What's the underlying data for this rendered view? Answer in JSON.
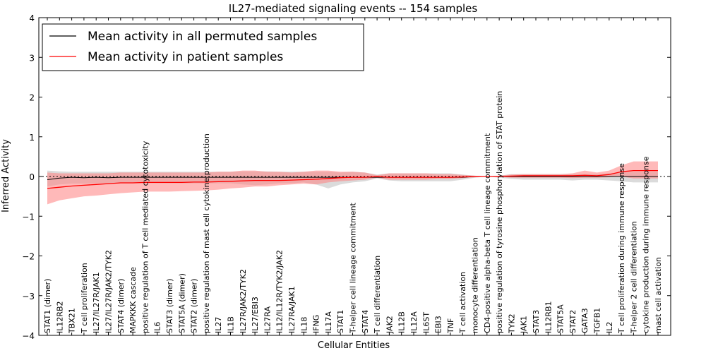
{
  "chart_data": {
    "type": "line",
    "title": "IL27-mediated signaling events -- 154 samples",
    "xlabel": "Cellular Entities",
    "ylabel": "Inferred Activity",
    "ylim": [
      -4,
      4
    ],
    "yticks": [
      "−4",
      "−3",
      "−2",
      "−1",
      "0",
      "1",
      "2",
      "3",
      "4"
    ],
    "ytick_values": [
      -4,
      -3,
      -2,
      -1,
      0,
      1,
      2,
      3,
      4
    ],
    "legend_position": "top-left",
    "grid": false,
    "categories": [
      "STAT1 (dimer)",
      "IL12RB2",
      "TBX21",
      "T cell proliferation",
      "IL27/IL27R/JAK1",
      "IL27/IL27R/JAK2/TYK2",
      "STAT4 (dimer)",
      "MAPKKK cascade",
      "positive regulation of T cell mediated cytotoxicity",
      "IL6",
      "STAT3 (dimer)",
      "STAT5A (dimer)",
      "STAT2 (dimer)",
      "positive regulation of mast cell cytokine production",
      "IL27",
      "IL1B",
      "IL27R/JAK2/TYK2",
      "IL27/EBI3",
      "IL27RA",
      "IL12/IL12R/TYK2/JAK2",
      "IL27RA/JAK1",
      "IL18",
      "IFNG",
      "IL17A",
      "STAT1",
      "T-helper cell lineage commitment",
      "STAT4",
      "T cell differentiation",
      "JAK2",
      "IL12B",
      "IL12A",
      "IL6ST",
      "EBI3",
      "TNF",
      "T cell activation",
      "monocyte differentiation",
      "CD4-positive alpha-beta T cell lineage commitment",
      "positive regulation of tyrosine phosphorylation of STAT protein",
      "TYK2",
      "JAK1",
      "STAT3",
      "IL12RB1",
      "STAT5A",
      "STAT2",
      "GATA3",
      "TGFB1",
      "IL2",
      "T cell proliferation during immune response",
      "T-helper 2 cell differentiation",
      "cytokine production during immune response",
      "mast cell activation"
    ],
    "series": [
      {
        "name": "Mean activity in all permuted samples",
        "color": "#000000",
        "band_color": "#b0b0b0",
        "values": [
          -0.08,
          -0.04,
          -0.02,
          -0.03,
          -0.02,
          -0.03,
          -0.02,
          -0.02,
          -0.02,
          -0.02,
          -0.02,
          -0.02,
          -0.02,
          -0.02,
          -0.02,
          -0.02,
          -0.02,
          -0.02,
          -0.02,
          -0.02,
          -0.02,
          -0.02,
          -0.02,
          -0.02,
          -0.02,
          -0.02,
          -0.02,
          -0.02,
          -0.02,
          -0.02,
          -0.02,
          -0.02,
          -0.02,
          -0.02,
          -0.02,
          0.0,
          0.0,
          0.0,
          0.0,
          0.0,
          0.0,
          0.0,
          0.0,
          0.0,
          0.0,
          0.0,
          0.0,
          0.0,
          0.0,
          0.0,
          0.0
        ],
        "lower": [
          -0.25,
          -0.2,
          -0.18,
          -0.18,
          -0.17,
          -0.17,
          -0.17,
          -0.17,
          -0.17,
          -0.17,
          -0.17,
          -0.17,
          -0.17,
          -0.17,
          -0.17,
          -0.17,
          -0.2,
          -0.22,
          -0.2,
          -0.17,
          -0.17,
          -0.15,
          -0.2,
          -0.3,
          -0.2,
          -0.15,
          -0.12,
          -0.05,
          -0.1,
          -0.12,
          -0.12,
          -0.12,
          -0.12,
          -0.12,
          -0.08,
          -0.03,
          0.0,
          -0.03,
          -0.06,
          -0.08,
          -0.08,
          -0.08,
          -0.08,
          -0.1,
          -0.08,
          -0.08,
          -0.1,
          -0.12,
          -0.15,
          -0.15,
          -0.15
        ],
        "upper": [
          0.15,
          0.13,
          0.12,
          0.12,
          0.12,
          0.12,
          0.12,
          0.12,
          0.12,
          0.12,
          0.12,
          0.12,
          0.12,
          0.12,
          0.12,
          0.12,
          0.13,
          0.13,
          0.13,
          0.12,
          0.12,
          0.12,
          0.12,
          0.12,
          0.1,
          0.12,
          0.1,
          0.05,
          0.08,
          0.08,
          0.08,
          0.08,
          0.08,
          0.08,
          0.05,
          0.02,
          0.0,
          0.02,
          0.06,
          0.06,
          0.06,
          0.06,
          0.06,
          0.06,
          0.06,
          0.06,
          0.08,
          0.1,
          0.12,
          0.12,
          0.12
        ]
      },
      {
        "name": "Mean activity in patient samples",
        "color": "#ff0000",
        "band_color": "#ff8080",
        "values": [
          -0.3,
          -0.27,
          -0.24,
          -0.22,
          -0.2,
          -0.18,
          -0.16,
          -0.16,
          -0.15,
          -0.15,
          -0.15,
          -0.15,
          -0.14,
          -0.14,
          -0.13,
          -0.12,
          -0.11,
          -0.1,
          -0.1,
          -0.1,
          -0.09,
          -0.08,
          -0.07,
          -0.05,
          -0.03,
          -0.02,
          -0.02,
          0.0,
          -0.02,
          -0.02,
          -0.02,
          -0.02,
          -0.02,
          -0.02,
          -0.01,
          0.0,
          0.0,
          0.0,
          0.01,
          0.02,
          0.02,
          0.02,
          0.02,
          0.02,
          0.03,
          0.02,
          0.05,
          0.12,
          0.15,
          0.15,
          0.15
        ],
        "lower": [
          -0.7,
          -0.6,
          -0.55,
          -0.5,
          -0.48,
          -0.45,
          -0.42,
          -0.4,
          -0.38,
          -0.38,
          -0.38,
          -0.37,
          -0.36,
          -0.35,
          -0.33,
          -0.3,
          -0.28,
          -0.25,
          -0.25,
          -0.22,
          -0.2,
          -0.18,
          -0.2,
          -0.15,
          -0.12,
          -0.1,
          -0.08,
          -0.03,
          -0.08,
          -0.08,
          -0.08,
          -0.08,
          -0.06,
          -0.06,
          -0.04,
          -0.02,
          0.0,
          -0.01,
          -0.03,
          -0.03,
          -0.03,
          -0.03,
          -0.03,
          -0.04,
          -0.03,
          -0.03,
          -0.02,
          0.0,
          -0.05,
          -0.05,
          -0.05
        ],
        "upper": [
          0.1,
          0.08,
          0.08,
          0.08,
          0.08,
          0.08,
          0.1,
          0.1,
          0.1,
          0.1,
          0.1,
          0.1,
          0.1,
          0.1,
          0.12,
          0.12,
          0.15,
          0.15,
          0.12,
          0.12,
          0.1,
          0.12,
          0.15,
          0.15,
          0.12,
          0.12,
          0.1,
          0.03,
          0.08,
          0.08,
          0.08,
          0.08,
          0.06,
          0.06,
          0.04,
          0.02,
          0.0,
          0.02,
          0.05,
          0.06,
          0.06,
          0.06,
          0.06,
          0.08,
          0.15,
          0.1,
          0.15,
          0.28,
          0.38,
          0.38,
          0.38
        ]
      }
    ]
  }
}
